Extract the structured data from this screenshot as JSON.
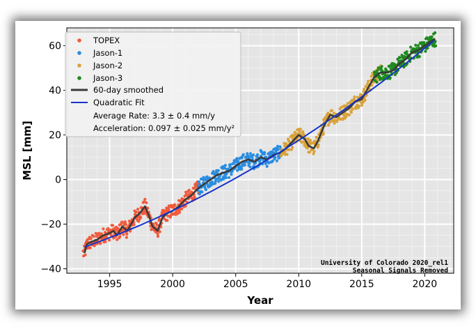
{
  "chart_data": {
    "type": "scatter",
    "title": "",
    "xlabel": "Year",
    "ylabel": "MSL [mm]",
    "xlim": [
      1991.6,
      2022.3
    ],
    "ylim": [
      -42,
      68
    ],
    "x_ticks": [
      1995,
      2000,
      2005,
      2010,
      2015,
      2020
    ],
    "y_ticks": [
      -40,
      -20,
      0,
      20,
      40,
      60
    ],
    "grid": true,
    "legend_position": "top-left",
    "series": [
      {
        "name": "TOPEX",
        "kind": "points",
        "color": "#f15a3c",
        "x_range": [
          1992.9,
          2002.1
        ]
      },
      {
        "name": "Jason-1",
        "kind": "points",
        "color": "#2a8de0",
        "x_range": [
          2002.0,
          2008.6
        ]
      },
      {
        "name": "Jason-2",
        "kind": "points",
        "color": "#d9a23a",
        "x_range": [
          2008.6,
          2016.5
        ]
      },
      {
        "name": "Jason-3",
        "kind": "points",
        "color": "#1e8a1e",
        "x_range": [
          2016.0,
          2020.9
        ]
      },
      {
        "name": "60-day smoothed",
        "kind": "line",
        "color": "#3a3a3a",
        "points": [
          [
            1993.0,
            -33
          ],
          [
            1993.2,
            -29
          ],
          [
            1993.5,
            -28
          ],
          [
            1994.0,
            -27
          ],
          [
            1994.5,
            -25
          ],
          [
            1995.0,
            -24
          ],
          [
            1995.3,
            -23
          ],
          [
            1995.6,
            -25
          ],
          [
            1996.0,
            -21
          ],
          [
            1996.4,
            -23
          ],
          [
            1996.8,
            -19
          ],
          [
            1997.0,
            -17
          ],
          [
            1997.4,
            -15
          ],
          [
            1997.8,
            -12
          ],
          [
            1998.1,
            -16
          ],
          [
            1998.4,
            -21
          ],
          [
            1998.8,
            -23
          ],
          [
            1999.2,
            -17
          ],
          [
            1999.6,
            -15
          ],
          [
            2000.0,
            -14
          ],
          [
            2000.5,
            -12
          ],
          [
            2001.0,
            -9
          ],
          [
            2001.5,
            -7
          ],
          [
            2002.0,
            -4
          ],
          [
            2002.5,
            -2
          ],
          [
            2003.0,
            0
          ],
          [
            2003.5,
            2
          ],
          [
            2004.0,
            3
          ],
          [
            2004.5,
            4
          ],
          [
            2005.0,
            6
          ],
          [
            2005.5,
            8
          ],
          [
            2006.0,
            9
          ],
          [
            2006.5,
            8
          ],
          [
            2007.0,
            10
          ],
          [
            2007.5,
            9
          ],
          [
            2008.0,
            11
          ],
          [
            2008.5,
            12
          ],
          [
            2009.0,
            14
          ],
          [
            2009.5,
            17
          ],
          [
            2010.0,
            20
          ],
          [
            2010.5,
            18
          ],
          [
            2010.8,
            15
          ],
          [
            2011.2,
            14
          ],
          [
            2011.5,
            17
          ],
          [
            2012.0,
            24
          ],
          [
            2012.5,
            29
          ],
          [
            2013.0,
            28
          ],
          [
            2013.5,
            30
          ],
          [
            2014.0,
            32
          ],
          [
            2014.5,
            35
          ],
          [
            2015.0,
            36
          ],
          [
            2015.5,
            41
          ],
          [
            2016.0,
            46
          ],
          [
            2016.5,
            48
          ],
          [
            2017.0,
            48
          ],
          [
            2017.5,
            49
          ],
          [
            2018.0,
            52
          ],
          [
            2018.5,
            54
          ],
          [
            2019.0,
            57
          ],
          [
            2019.5,
            58
          ],
          [
            2020.0,
            60
          ],
          [
            2020.5,
            62
          ],
          [
            2020.8,
            63
          ]
        ]
      },
      {
        "name": "Quadratic Fit",
        "kind": "fit",
        "color": "#1533c9",
        "coefficients": {
          "a": 0.0485,
          "b": 3.3,
          "c": 5.5,
          "x0": 2006.5
        }
      }
    ],
    "annotations": [
      "Average Rate: 3.3 ± 0.4 mm/y",
      "Acceleration: 0.097 ± 0.025 mm/y²"
    ],
    "credits": [
      "University of Colorado 2020_rel1",
      "Seasonal Signals Removed"
    ]
  }
}
